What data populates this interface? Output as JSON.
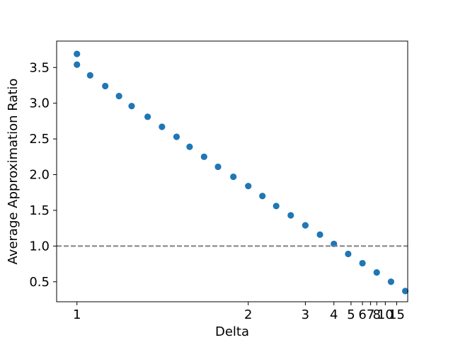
{
  "chart_data": {
    "type": "scatter",
    "xlabel": "Delta",
    "ylabel": "Average Approximation Ratio",
    "x_scale": "reciprocal",
    "xlim": [
      0.944,
      28.9
    ],
    "ylim": [
      0.22,
      3.87
    ],
    "x_ticks": [
      {
        "value": 1,
        "label": "1"
      },
      {
        "value": 2,
        "label": "2"
      },
      {
        "value": 3,
        "label": "3"
      },
      {
        "value": 4,
        "label": "4"
      },
      {
        "value": 5,
        "label": "5"
      },
      {
        "value": 6,
        "label": "6"
      },
      {
        "value": 7,
        "label": "7"
      },
      {
        "value": 8,
        "label": "8"
      },
      {
        "value": 10,
        "label": "10"
      },
      {
        "value": 15,
        "label": "15"
      }
    ],
    "y_ticks": [
      {
        "value": 0.5,
        "label": "0.5"
      },
      {
        "value": 1.0,
        "label": "1.0"
      },
      {
        "value": 1.5,
        "label": "1.5"
      },
      {
        "value": 2.0,
        "label": "2.0"
      },
      {
        "value": 2.5,
        "label": "2.5"
      },
      {
        "value": 3.0,
        "label": "3.0"
      },
      {
        "value": 3.5,
        "label": "3.5"
      }
    ],
    "reference_line": {
      "y": 1.0,
      "style": "dashed",
      "color": "#808080"
    },
    "grid": false,
    "marker_color": "#1f77b4",
    "points": [
      {
        "x": 1.0,
        "y": 3.69
      },
      {
        "x": 1.0,
        "y": 3.54
      },
      {
        "x": 1.04,
        "y": 3.39
      },
      {
        "x": 1.09,
        "y": 3.24
      },
      {
        "x": 1.14,
        "y": 3.1
      },
      {
        "x": 1.19,
        "y": 2.96
      },
      {
        "x": 1.26,
        "y": 2.81
      },
      {
        "x": 1.33,
        "y": 2.67
      },
      {
        "x": 1.41,
        "y": 2.53
      },
      {
        "x": 1.49,
        "y": 2.39
      },
      {
        "x": 1.59,
        "y": 2.25
      },
      {
        "x": 1.7,
        "y": 2.11
      },
      {
        "x": 1.84,
        "y": 1.97
      },
      {
        "x": 2.0,
        "y": 1.84
      },
      {
        "x": 2.18,
        "y": 1.7
      },
      {
        "x": 2.39,
        "y": 1.56
      },
      {
        "x": 2.66,
        "y": 1.43
      },
      {
        "x": 3.0,
        "y": 1.29
      },
      {
        "x": 3.44,
        "y": 1.16
      },
      {
        "x": 4.0,
        "y": 1.03
      },
      {
        "x": 4.8,
        "y": 0.89
      },
      {
        "x": 6.0,
        "y": 0.76
      },
      {
        "x": 8.0,
        "y": 0.63
      },
      {
        "x": 12.0,
        "y": 0.5
      },
      {
        "x": 24.0,
        "y": 0.37
      }
    ]
  }
}
